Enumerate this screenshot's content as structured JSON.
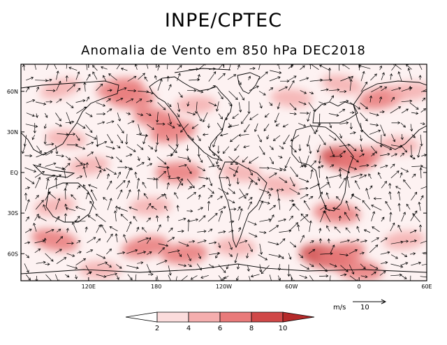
{
  "header": {
    "title": "INPE/CPTEC",
    "subtitle": "Anomalia de Vento em 850 hPa DEC2018"
  },
  "map": {
    "projection": "cylindrical",
    "lon_range": [
      60,
      420
    ],
    "lat_range": [
      -80,
      80
    ],
    "lat_labels": [
      "60N",
      "30N",
      "EQ",
      "30S",
      "60S"
    ],
    "lat_values": [
      60,
      30,
      0,
      -30,
      -60
    ],
    "lon_labels": [
      "120E",
      "180",
      "120W",
      "60W",
      "0",
      "60E"
    ],
    "lon_values": [
      120,
      180,
      240,
      300,
      360,
      420
    ],
    "shading_color": "#d04848",
    "anomaly_regions": [
      {
        "lon": 95,
        "lat": 62,
        "level": 2
      },
      {
        "lon": 148,
        "lat": 62,
        "level": 3
      },
      {
        "lon": 158,
        "lat": 55,
        "level": 3
      },
      {
        "lon": 100,
        "lat": 25,
        "level": 2
      },
      {
        "lon": 180,
        "lat": 40,
        "level": 3
      },
      {
        "lon": 195,
        "lat": 30,
        "level": 3
      },
      {
        "lon": 215,
        "lat": 50,
        "level": 2
      },
      {
        "lon": 300,
        "lat": 55,
        "level": 2
      },
      {
        "lon": 345,
        "lat": 65,
        "level": 2
      },
      {
        "lon": 380,
        "lat": 55,
        "level": 3
      },
      {
        "lon": 405,
        "lat": 60,
        "level": 2
      },
      {
        "lon": 395,
        "lat": 20,
        "level": 2
      },
      {
        "lon": 348,
        "lat": 10,
        "level": 4
      },
      {
        "lon": 360,
        "lat": 10,
        "level": 3
      },
      {
        "lon": 120,
        "lat": 5,
        "level": 2
      },
      {
        "lon": 200,
        "lat": 0,
        "level": 3
      },
      {
        "lon": 255,
        "lat": 0,
        "level": 2
      },
      {
        "lon": 290,
        "lat": -10,
        "level": 2
      },
      {
        "lon": 90,
        "lat": -25,
        "level": 2
      },
      {
        "lon": 175,
        "lat": -25,
        "level": 2
      },
      {
        "lon": 340,
        "lat": -30,
        "level": 3
      },
      {
        "lon": 90,
        "lat": -50,
        "level": 3
      },
      {
        "lon": 170,
        "lat": -55,
        "level": 3
      },
      {
        "lon": 205,
        "lat": -60,
        "level": 3
      },
      {
        "lon": 250,
        "lat": -55,
        "level": 2
      },
      {
        "lon": 330,
        "lat": -62,
        "level": 4
      },
      {
        "lon": 345,
        "lat": -60,
        "level": 3
      },
      {
        "lon": 400,
        "lat": -50,
        "level": 2
      },
      {
        "lon": 130,
        "lat": -72,
        "level": 2
      },
      {
        "lon": 360,
        "lat": -72,
        "level": 3
      }
    ]
  },
  "colorbar": {
    "ticks": [
      "2",
      "4",
      "6",
      "8",
      "10"
    ],
    "colors": [
      "#ffffff",
      "#fbdcdc",
      "#f5aeae",
      "#e97a7a",
      "#d04848",
      "#b52a2a"
    ]
  },
  "reference_vector": {
    "units": "m/s",
    "value": "10"
  }
}
